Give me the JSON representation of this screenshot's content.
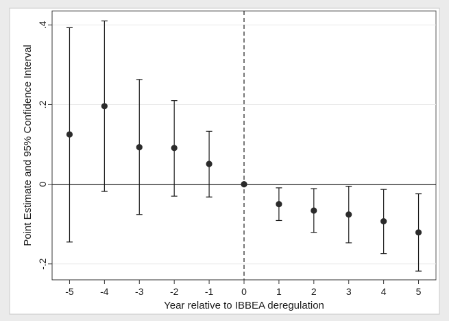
{
  "chart_data": {
    "type": "scatter",
    "subtype": "coefficient-plot-with-confidence-intervals",
    "xlabel": "Year relative to IBBEA deregulation",
    "ylabel": "Point Estimate and 95% Confidence Interval",
    "x_ticks": [
      -5,
      -4,
      -3,
      -2,
      -1,
      0,
      1,
      2,
      3,
      4,
      5
    ],
    "y_ticks": [
      {
        "value": -0.2,
        "label": "-.2"
      },
      {
        "value": 0,
        "label": "0"
      },
      {
        "value": 0.2,
        "label": ".2"
      },
      {
        "value": 0.4,
        "label": ".4"
      }
    ],
    "xlim": [
      -5.5,
      5.5
    ],
    "ylim": [
      -0.24,
      0.435
    ],
    "grid": "horizontal",
    "reference_lines": {
      "horizontal_y": 0,
      "vertical_x_dashed": 0
    },
    "points": [
      {
        "x": -5,
        "estimate": 0.125,
        "ci_low": -0.145,
        "ci_high": 0.393
      },
      {
        "x": -4,
        "estimate": 0.196,
        "ci_low": -0.018,
        "ci_high": 0.41
      },
      {
        "x": -3,
        "estimate": 0.093,
        "ci_low": -0.076,
        "ci_high": 0.263
      },
      {
        "x": -2,
        "estimate": 0.091,
        "ci_low": -0.03,
        "ci_high": 0.21
      },
      {
        "x": -1,
        "estimate": 0.051,
        "ci_low": -0.032,
        "ci_high": 0.133
      },
      {
        "x": 0,
        "estimate": 0.0,
        "ci_low": 0.0,
        "ci_high": 0.0
      },
      {
        "x": 1,
        "estimate": -0.05,
        "ci_low": -0.091,
        "ci_high": -0.009
      },
      {
        "x": 2,
        "estimate": -0.066,
        "ci_low": -0.121,
        "ci_high": -0.011
      },
      {
        "x": 3,
        "estimate": -0.076,
        "ci_low": -0.147,
        "ci_high": -0.005
      },
      {
        "x": 4,
        "estimate": -0.093,
        "ci_low": -0.174,
        "ci_high": -0.013
      },
      {
        "x": 5,
        "estimate": -0.121,
        "ci_low": -0.218,
        "ci_high": -0.024
      }
    ],
    "colors": {
      "background": "#ebebeb",
      "plot_area": "#ffffff",
      "marker": "#2b2b2b",
      "line": "#1a1a1a",
      "grid": "#e8e8e8"
    }
  }
}
